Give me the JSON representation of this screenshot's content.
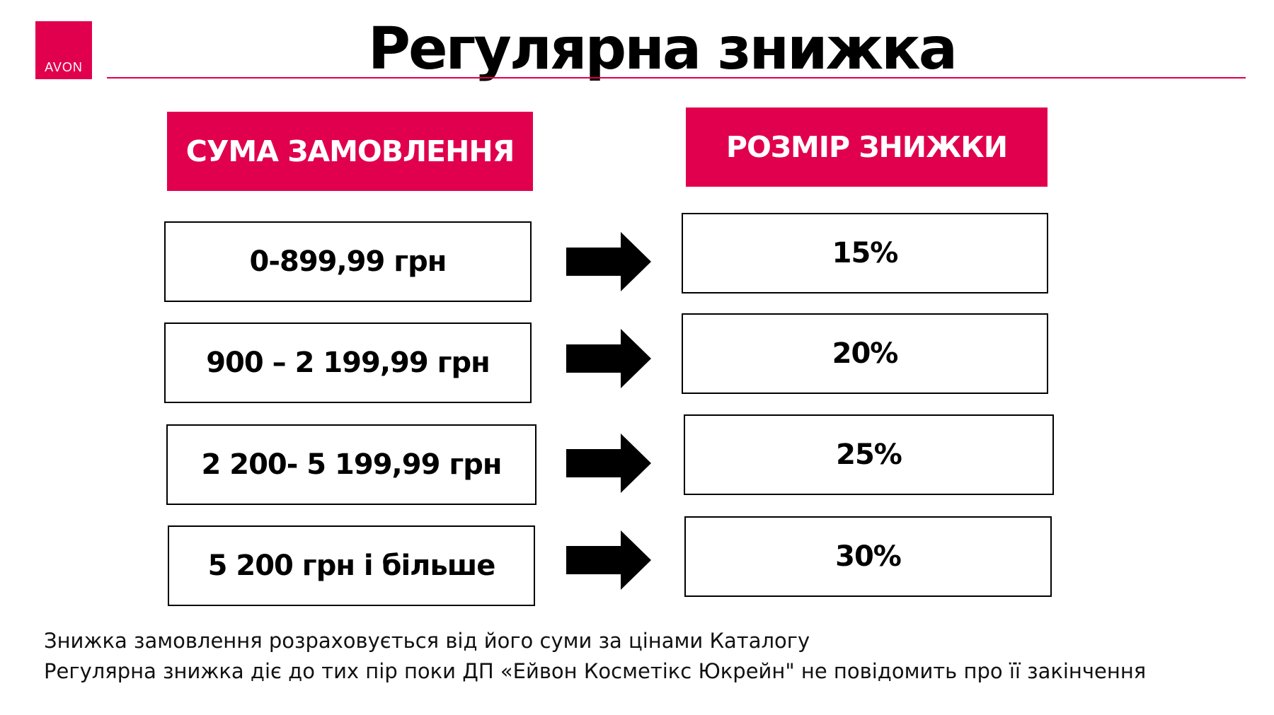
{
  "logo": {
    "text": "AVON"
  },
  "title": "Регулярна знижка",
  "headers": {
    "amount": "СУМА ЗАМОВЛЕННЯ",
    "discount": "РОЗМІР ЗНИЖКИ"
  },
  "rows": [
    {
      "amount": "0-899,99 грн",
      "discount": "15%"
    },
    {
      "amount": "900 – 2 199,99 грн",
      "discount": "20%"
    },
    {
      "amount": "2 200- 5 199,99 грн",
      "discount": "25%"
    },
    {
      "amount": "5 200 грн і більше",
      "discount": "30%"
    }
  ],
  "footer": {
    "line1": "Знижка  замовлення розраховується від його суми за цінами Каталогу",
    "line2": "Регулярна знижка діє до тих пір поки ДП «Ейвон Косметікс Юкрейн\" не повідомить про її закінчення"
  },
  "colors": {
    "brand": "#e0004d",
    "text": "#000000",
    "background": "#ffffff"
  },
  "icons": {
    "arrow": "arrow-right-icon"
  }
}
